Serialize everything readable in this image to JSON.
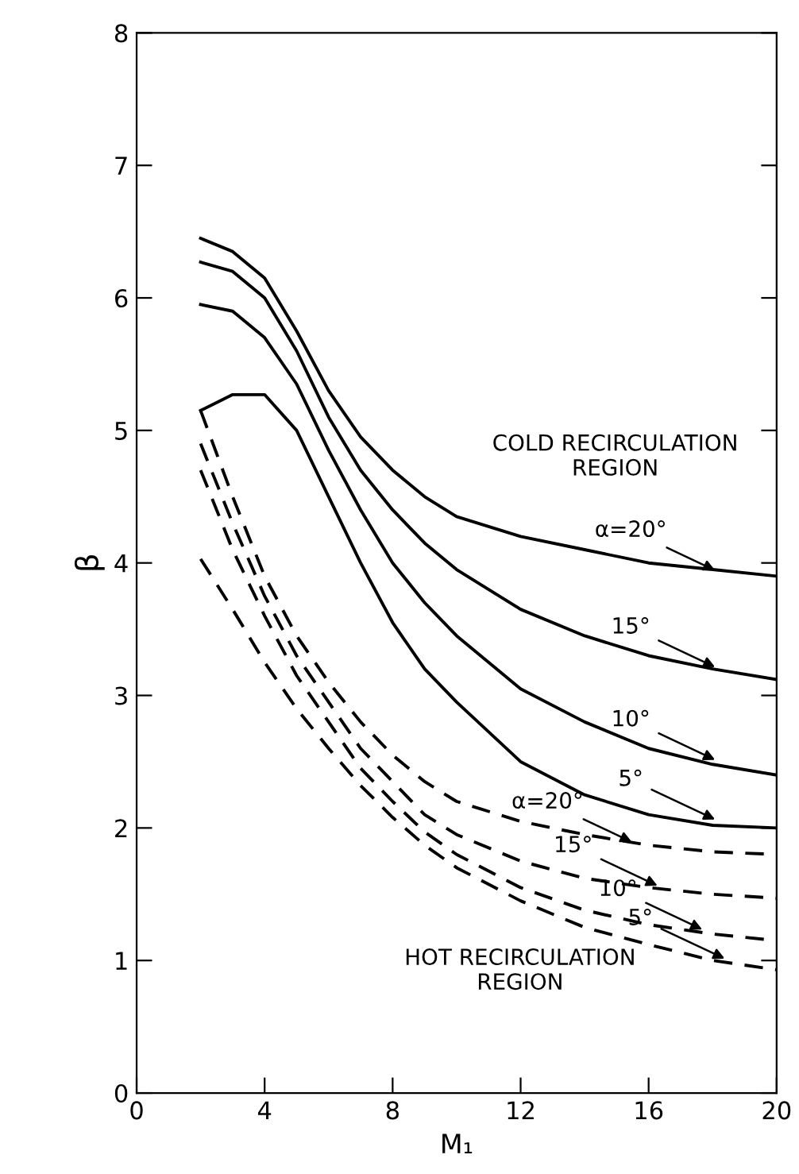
{
  "chart_data": {
    "type": "line",
    "xlabel": "M₁",
    "ylabel": "β",
    "xlim": [
      0,
      20
    ],
    "ylim": [
      0,
      8
    ],
    "xticks": [
      0,
      4,
      8,
      12,
      16,
      20
    ],
    "yticks": [
      0,
      1,
      2,
      3,
      4,
      5,
      6,
      7,
      8
    ],
    "grid": false,
    "legend": false,
    "marker": "none",
    "x": [
      2,
      3,
      4,
      5,
      6,
      7,
      8,
      9,
      10,
      12,
      14,
      16,
      18,
      20
    ],
    "series": [
      {
        "color": "#000000",
        "line_style": "solid",
        "values": [
          6.45,
          6.35,
          6.15,
          5.75,
          5.3,
          4.95,
          4.7,
          4.5,
          4.35,
          4.2,
          4.1,
          4.0,
          3.95,
          3.9
        ]
      },
      {
        "color": "#000000",
        "line_style": "solid",
        "values": [
          6.27,
          6.2,
          6.0,
          5.6,
          5.1,
          4.7,
          4.4,
          4.15,
          3.95,
          3.65,
          3.45,
          3.3,
          3.2,
          3.12
        ]
      },
      {
        "color": "#000000",
        "line_style": "solid",
        "values": [
          5.95,
          5.9,
          5.7,
          5.35,
          4.85,
          4.4,
          4.0,
          3.7,
          3.45,
          3.05,
          2.8,
          2.6,
          2.48,
          2.4
        ]
      },
      {
        "color": "#000000",
        "line_style": "solid",
        "values": [
          5.15,
          5.27,
          5.27,
          5.0,
          4.5,
          4.0,
          3.55,
          3.2,
          2.95,
          2.5,
          2.25,
          2.1,
          2.02,
          2.0
        ]
      },
      {
        "color": "#000000",
        "line_style": "dashed",
        "values": [
          5.15,
          4.5,
          3.9,
          3.45,
          3.1,
          2.8,
          2.55,
          2.35,
          2.2,
          2.05,
          1.95,
          1.87,
          1.82,
          1.8
        ]
      },
      {
        "color": "#000000",
        "line_style": "dashed",
        "values": [
          4.9,
          4.3,
          3.75,
          3.3,
          2.95,
          2.6,
          2.35,
          2.1,
          1.95,
          1.75,
          1.62,
          1.55,
          1.5,
          1.47
        ]
      },
      {
        "color": "#000000",
        "line_style": "dashed",
        "values": [
          4.7,
          4.1,
          3.6,
          3.15,
          2.8,
          2.45,
          2.2,
          1.97,
          1.8,
          1.55,
          1.38,
          1.27,
          1.2,
          1.15
        ]
      },
      {
        "color": "#000000",
        "line_style": "dashed",
        "values": [
          4.03,
          3.65,
          3.25,
          2.9,
          2.6,
          2.32,
          2.08,
          1.87,
          1.7,
          1.45,
          1.25,
          1.12,
          1.0,
          0.93
        ]
      }
    ],
    "annotations": [
      "COLD RECIRCULATION\nREGION",
      "HOT RECIRCULATION\nREGION",
      {
        "text": "α=20°",
        "x": 18.2,
        "y": 3.93
      },
      {
        "text": "15°",
        "x": 18.2,
        "y": 3.2
      },
      {
        "text": "10°",
        "x": 18.2,
        "y": 2.5
      },
      {
        "text": "5°",
        "x": 18.2,
        "y": 2.05
      },
      {
        "text": "α=20°",
        "x": 15.6,
        "y": 1.88
      },
      {
        "text": "15°",
        "x": 16.4,
        "y": 1.55
      },
      {
        "text": "10°",
        "x": 17.8,
        "y": 1.22
      },
      {
        "text": "5°",
        "x": 18.5,
        "y": 1.0
      }
    ]
  }
}
